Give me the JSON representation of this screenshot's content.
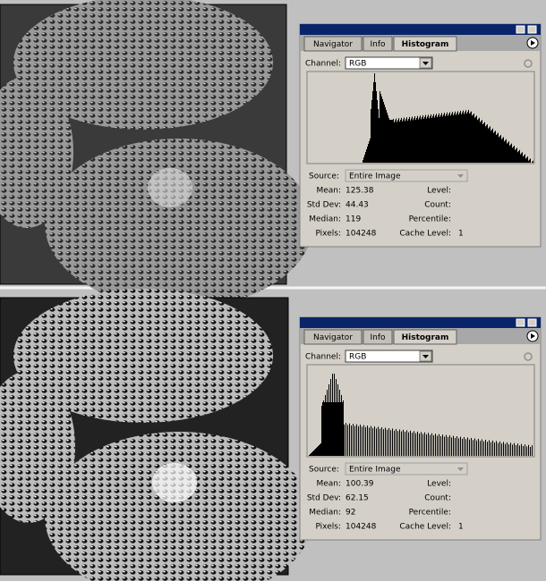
{
  "panels": [
    {
      "tabs": [
        "Navigator",
        "Info",
        "Histogram"
      ],
      "channel_label": "Channel:",
      "channel": "RGB",
      "source_label": "Source:",
      "source": "Entire Image",
      "stats_left": [
        {
          "label": "Mean:",
          "value": 125.38
        },
        {
          "label": "Std Dev:",
          "value": 44.43
        },
        {
          "label": "Median:",
          "value": 119
        },
        {
          "label": "Pixels:",
          "value": 104248
        }
      ],
      "stats_right": [
        {
          "label": "Level:"
        },
        {
          "label": "Count:"
        },
        {
          "label": "Percentile:"
        },
        {
          "label": "Cache Level:",
          "value": 1
        }
      ]
    },
    {
      "tabs": [
        "Navigator",
        "Info",
        "Histogram"
      ],
      "channel_label": "Channel:",
      "channel": "RGB",
      "source_label": "Source:",
      "source": "Entire Image",
      "stats_left": [
        {
          "label": "Mean:",
          "value": 100.39
        },
        {
          "label": "Std Dev:",
          "value": 62.15
        },
        {
          "label": "Median:",
          "value": 92
        },
        {
          "label": "Pixels:",
          "value": 104248
        }
      ],
      "stats_right": [
        {
          "label": "Level:"
        },
        {
          "label": "Count:"
        },
        {
          "label": "Percentile:"
        },
        {
          "label": "Cache Level:",
          "value": 1
        }
      ]
    }
  ]
}
